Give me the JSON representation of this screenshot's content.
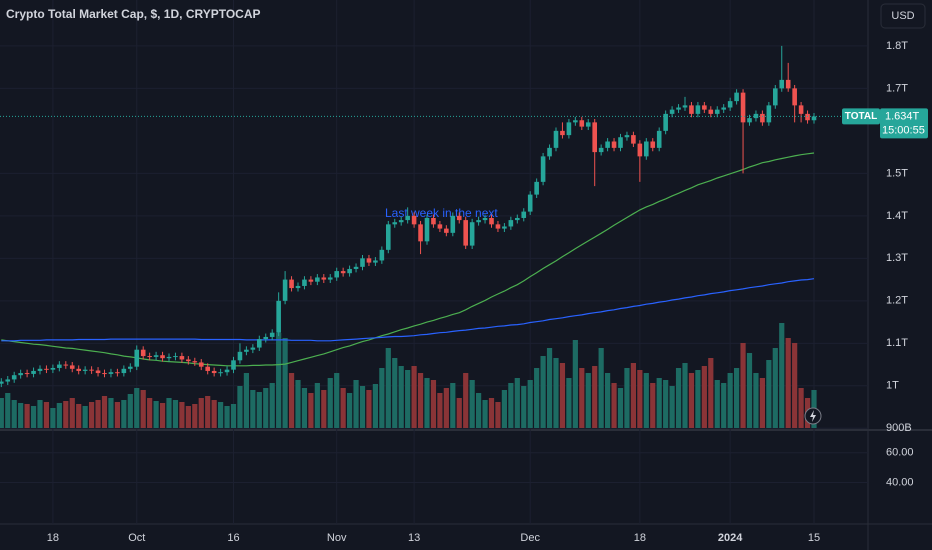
{
  "chart_data": {
    "type": "candlestick",
    "title": "Crypto Total Market Cap, $, 1D, CRYPTOCAP",
    "currency": "USD",
    "price_label": "TOTAL",
    "last_price": {
      "value": 1.634,
      "label": "1.634T"
    },
    "countdown": "15:00:55",
    "annotation": "Last week in the next",
    "up_color": "#26a69a",
    "down_color": "#ef5350",
    "grid": true,
    "categories": [
      null,
      null,
      null,
      null,
      null,
      null,
      null,
      null,
      "18",
      null,
      null,
      null,
      null,
      null,
      null,
      null,
      null,
      null,
      null,
      null,
      null,
      "Oct",
      null,
      null,
      null,
      null,
      null,
      null,
      null,
      null,
      null,
      null,
      null,
      null,
      null,
      null,
      "16",
      null,
      null,
      null,
      null,
      null,
      null,
      null,
      null,
      null,
      null,
      null,
      null,
      null,
      null,
      null,
      "Nov",
      null,
      null,
      null,
      null,
      null,
      null,
      null,
      null,
      null,
      null,
      null,
      "13",
      null,
      null,
      null,
      null,
      null,
      null,
      null,
      null,
      null,
      null,
      null,
      null,
      null,
      null,
      null,
      null,
      null,
      "Dec",
      null,
      null,
      null,
      null,
      null,
      null,
      null,
      null,
      null,
      null,
      null,
      null,
      null,
      null,
      null,
      null,
      "18",
      null,
      null,
      null,
      null,
      null,
      null,
      null,
      null,
      null,
      null,
      null,
      null,
      null,
      "2024",
      null,
      null,
      null,
      null,
      null,
      null,
      null,
      null,
      null,
      null,
      null,
      null,
      "15"
    ],
    "ohlc": [
      [
        1.005,
        1.018,
        0.997,
        1.01
      ],
      [
        1.01,
        1.023,
        1.002,
        1.015
      ],
      [
        1.015,
        1.033,
        1.007,
        1.025
      ],
      [
        1.025,
        1.038,
        1.017,
        1.03
      ],
      [
        1.03,
        1.038,
        1.02,
        1.028
      ],
      [
        1.028,
        1.043,
        1.02,
        1.035
      ],
      [
        1.035,
        1.048,
        1.027,
        1.04
      ],
      [
        1.04,
        1.048,
        1.03,
        1.038
      ],
      [
        1.038,
        1.05,
        1.03,
        1.042
      ],
      [
        1.042,
        1.058,
        1.034,
        1.05
      ],
      [
        1.05,
        1.058,
        1.04,
        1.048
      ],
      [
        1.048,
        1.056,
        1.032,
        1.04
      ],
      [
        1.04,
        1.048,
        1.027,
        1.035
      ],
      [
        1.035,
        1.046,
        1.027,
        1.038
      ],
      [
        1.038,
        1.046,
        1.028,
        1.036
      ],
      [
        1.036,
        1.044,
        1.022,
        1.03
      ],
      [
        1.03,
        1.038,
        1.02,
        1.028
      ],
      [
        1.028,
        1.04,
        1.02,
        1.032
      ],
      [
        1.032,
        1.04,
        1.022,
        1.03
      ],
      [
        1.03,
        1.048,
        1.022,
        1.04
      ],
      [
        1.04,
        1.053,
        1.032,
        1.045
      ],
      [
        1.045,
        1.095,
        1.037,
        1.085
      ],
      [
        1.085,
        1.093,
        1.062,
        1.07
      ],
      [
        1.07,
        1.078,
        1.06,
        1.068
      ],
      [
        1.068,
        1.08,
        1.06,
        1.072
      ],
      [
        1.072,
        1.08,
        1.057,
        1.065
      ],
      [
        1.065,
        1.076,
        1.057,
        1.068
      ],
      [
        1.068,
        1.078,
        1.06,
        1.07
      ],
      [
        1.07,
        1.078,
        1.054,
        1.062
      ],
      [
        1.062,
        1.07,
        1.05,
        1.058
      ],
      [
        1.058,
        1.066,
        1.047,
        1.055
      ],
      [
        1.055,
        1.063,
        1.037,
        1.045
      ],
      [
        1.045,
        1.053,
        1.027,
        1.035
      ],
      [
        1.035,
        1.043,
        1.022,
        1.03
      ],
      [
        1.03,
        1.04,
        1.022,
        1.032
      ],
      [
        1.032,
        1.046,
        1.024,
        1.038
      ],
      [
        1.038,
        1.068,
        1.03,
        1.06
      ],
      [
        1.06,
        1.1,
        1.052,
        1.08
      ],
      [
        1.08,
        1.093,
        1.072,
        1.085
      ],
      [
        1.085,
        1.098,
        1.077,
        1.09
      ],
      [
        1.09,
        1.118,
        1.082,
        1.11
      ],
      [
        1.11,
        1.123,
        1.102,
        1.115
      ],
      [
        1.115,
        1.133,
        1.107,
        1.125
      ],
      [
        1.125,
        1.22,
        1.117,
        1.2
      ],
      [
        1.2,
        1.27,
        1.192,
        1.25
      ],
      [
        1.25,
        1.258,
        1.222,
        1.23
      ],
      [
        1.23,
        1.243,
        1.222,
        1.235
      ],
      [
        1.235,
        1.258,
        1.227,
        1.25
      ],
      [
        1.25,
        1.258,
        1.237,
        1.245
      ],
      [
        1.245,
        1.263,
        1.237,
        1.255
      ],
      [
        1.255,
        1.263,
        1.242,
        1.25
      ],
      [
        1.25,
        1.263,
        1.242,
        1.255
      ],
      [
        1.255,
        1.278,
        1.247,
        1.27
      ],
      [
        1.27,
        1.278,
        1.257,
        1.265
      ],
      [
        1.265,
        1.283,
        1.257,
        1.275
      ],
      [
        1.275,
        1.288,
        1.267,
        1.28
      ],
      [
        1.28,
        1.308,
        1.272,
        1.3
      ],
      [
        1.3,
        1.308,
        1.282,
        1.29
      ],
      [
        1.29,
        1.303,
        1.282,
        1.295
      ],
      [
        1.295,
        1.328,
        1.287,
        1.32
      ],
      [
        1.32,
        1.388,
        1.312,
        1.38
      ],
      [
        1.38,
        1.393,
        1.372,
        1.385
      ],
      [
        1.385,
        1.398,
        1.377,
        1.39
      ],
      [
        1.39,
        1.42,
        1.382,
        1.4
      ],
      [
        1.4,
        1.408,
        1.372,
        1.38
      ],
      [
        1.38,
        1.388,
        1.31,
        1.34
      ],
      [
        1.34,
        1.403,
        1.332,
        1.395
      ],
      [
        1.395,
        1.403,
        1.372,
        1.38
      ],
      [
        1.38,
        1.388,
        1.362,
        1.37
      ],
      [
        1.37,
        1.378,
        1.352,
        1.36
      ],
      [
        1.36,
        1.408,
        1.352,
        1.4
      ],
      [
        1.4,
        1.408,
        1.382,
        1.39
      ],
      [
        1.39,
        1.398,
        1.322,
        1.33
      ],
      [
        1.33,
        1.393,
        1.322,
        1.385
      ],
      [
        1.385,
        1.398,
        1.377,
        1.39
      ],
      [
        1.39,
        1.403,
        1.382,
        1.395
      ],
      [
        1.395,
        1.403,
        1.372,
        1.38
      ],
      [
        1.38,
        1.388,
        1.362,
        1.37
      ],
      [
        1.37,
        1.383,
        1.362,
        1.375
      ],
      [
        1.375,
        1.398,
        1.367,
        1.39
      ],
      [
        1.39,
        1.403,
        1.382,
        1.395
      ],
      [
        1.395,
        1.418,
        1.387,
        1.41
      ],
      [
        1.41,
        1.458,
        1.402,
        1.45
      ],
      [
        1.45,
        1.488,
        1.442,
        1.48
      ],
      [
        1.48,
        1.548,
        1.472,
        1.54
      ],
      [
        1.54,
        1.568,
        1.532,
        1.56
      ],
      [
        1.56,
        1.608,
        1.552,
        1.6
      ],
      [
        1.6,
        1.62,
        1.582,
        1.59
      ],
      [
        1.59,
        1.628,
        1.582,
        1.62
      ],
      [
        1.62,
        1.633,
        1.612,
        1.625
      ],
      [
        1.625,
        1.633,
        1.602,
        1.61
      ],
      [
        1.61,
        1.628,
        1.602,
        1.62
      ],
      [
        1.62,
        1.628,
        1.47,
        1.55
      ],
      [
        1.55,
        1.568,
        1.542,
        1.56
      ],
      [
        1.56,
        1.583,
        1.552,
        1.575
      ],
      [
        1.575,
        1.583,
        1.552,
        1.56
      ],
      [
        1.56,
        1.593,
        1.552,
        1.585
      ],
      [
        1.585,
        1.598,
        1.577,
        1.59
      ],
      [
        1.59,
        1.598,
        1.562,
        1.57
      ],
      [
        1.57,
        1.578,
        1.48,
        1.54
      ],
      [
        1.54,
        1.583,
        1.532,
        1.575
      ],
      [
        1.575,
        1.583,
        1.552,
        1.56
      ],
      [
        1.56,
        1.608,
        1.552,
        1.6
      ],
      [
        1.6,
        1.648,
        1.592,
        1.64
      ],
      [
        1.64,
        1.658,
        1.632,
        1.65
      ],
      [
        1.65,
        1.663,
        1.642,
        1.655
      ],
      [
        1.655,
        1.68,
        1.647,
        1.66
      ],
      [
        1.66,
        1.668,
        1.632,
        1.64
      ],
      [
        1.64,
        1.668,
        1.632,
        1.66
      ],
      [
        1.66,
        1.668,
        1.642,
        1.65
      ],
      [
        1.65,
        1.658,
        1.632,
        1.64
      ],
      [
        1.64,
        1.658,
        1.632,
        1.65
      ],
      [
        1.65,
        1.663,
        1.642,
        1.655
      ],
      [
        1.655,
        1.678,
        1.647,
        1.67
      ],
      [
        1.67,
        1.698,
        1.662,
        1.69
      ],
      [
        1.69,
        1.698,
        1.5,
        1.62
      ],
      [
        1.62,
        1.638,
        1.612,
        1.63
      ],
      [
        1.63,
        1.648,
        1.622,
        1.64
      ],
      [
        1.64,
        1.648,
        1.612,
        1.62
      ],
      [
        1.62,
        1.668,
        1.612,
        1.66
      ],
      [
        1.66,
        1.708,
        1.652,
        1.7
      ],
      [
        1.7,
        1.8,
        1.692,
        1.72
      ],
      [
        1.72,
        1.76,
        1.692,
        1.7
      ],
      [
        1.7,
        1.708,
        1.62,
        1.66
      ],
      [
        1.66,
        1.668,
        1.62,
        1.64
      ],
      [
        1.64,
        1.648,
        1.617,
        1.625
      ],
      [
        1.625,
        1.642,
        1.617,
        1.634
      ]
    ],
    "volume": {
      "up_color": "#1d6b63",
      "down_color": "#8a3437",
      "values": [
        30,
        35,
        28,
        25,
        24,
        22,
        28,
        26,
        20,
        25,
        27,
        30,
        24,
        22,
        26,
        28,
        32,
        30,
        26,
        28,
        34,
        40,
        38,
        30,
        27,
        25,
        30,
        28,
        26,
        22,
        24,
        30,
        32,
        28,
        26,
        22,
        24,
        42,
        55,
        38,
        36,
        40,
        45,
        95,
        90,
        55,
        48,
        40,
        35,
        45,
        38,
        50,
        55,
        40,
        35,
        48,
        42,
        38,
        44,
        60,
        80,
        70,
        62,
        58,
        62,
        55,
        50,
        48,
        35,
        40,
        45,
        30,
        55,
        48,
        35,
        28,
        30,
        26,
        38,
        45,
        50,
        42,
        48,
        60,
        72,
        80,
        70,
        65,
        50,
        88,
        60,
        55,
        62,
        80,
        55,
        45,
        40,
        60,
        65,
        58,
        55,
        45,
        50,
        48,
        42,
        60,
        65,
        55,
        58,
        62,
        70,
        48,
        45,
        55,
        60,
        85,
        75,
        55,
        50,
        68,
        80,
        105,
        90,
        85,
        40,
        30,
        38
      ]
    },
    "lines": [
      {
        "color": "#4caf50",
        "values": [
          1.108,
          1.106,
          1.104,
          1.102,
          1.1,
          1.098,
          1.097,
          1.095,
          1.093,
          1.091,
          1.089,
          1.088,
          1.086,
          1.084,
          1.082,
          1.08,
          1.078,
          1.075,
          1.073,
          1.07,
          1.068,
          1.066,
          1.063,
          1.061,
          1.06,
          1.058,
          1.057,
          1.056,
          1.055,
          1.054,
          1.052,
          1.051,
          1.05,
          1.049,
          1.048,
          1.047,
          1.047,
          1.047,
          1.047,
          1.048,
          1.048,
          1.049,
          1.049,
          1.05,
          1.051,
          1.055,
          1.059,
          1.063,
          1.067,
          1.071,
          1.075,
          1.08,
          1.085,
          1.09,
          1.094,
          1.099,
          1.104,
          1.108,
          1.113,
          1.118,
          1.122,
          1.127,
          1.132,
          1.136,
          1.141,
          1.145,
          1.15,
          1.154,
          1.159,
          1.163,
          1.168,
          1.172,
          1.179,
          1.187,
          1.194,
          1.201,
          1.209,
          1.216,
          1.223,
          1.231,
          1.238,
          1.247,
          1.257,
          1.266,
          1.276,
          1.285,
          1.294,
          1.304,
          1.313,
          1.323,
          1.332,
          1.341,
          1.35,
          1.359,
          1.368,
          1.378,
          1.387,
          1.396,
          1.405,
          1.414,
          1.421,
          1.427,
          1.434,
          1.44,
          1.447,
          1.453,
          1.46,
          1.466,
          1.473,
          1.478,
          1.483,
          1.489,
          1.494,
          1.499,
          1.504,
          1.509,
          1.515,
          1.52,
          1.525,
          1.528,
          1.532,
          1.535,
          1.538,
          1.541,
          1.544,
          1.546,
          1.548
        ]
      },
      {
        "color": "#2962ff",
        "values": [
          1.106,
          1.106,
          1.106,
          1.107,
          1.107,
          1.107,
          1.107,
          1.108,
          1.108,
          1.108,
          1.108,
          1.108,
          1.109,
          1.109,
          1.109,
          1.109,
          1.109,
          1.11,
          1.11,
          1.11,
          1.11,
          1.11,
          1.11,
          1.11,
          1.11,
          1.11,
          1.11,
          1.11,
          1.11,
          1.11,
          1.11,
          1.109,
          1.109,
          1.109,
          1.109,
          1.109,
          1.109,
          1.109,
          1.108,
          1.108,
          1.108,
          1.108,
          1.108,
          1.108,
          1.108,
          1.107,
          1.107,
          1.107,
          1.107,
          1.106,
          1.106,
          1.106,
          1.107,
          1.108,
          1.109,
          1.11,
          1.111,
          1.112,
          1.113,
          1.114,
          1.115,
          1.116,
          1.116,
          1.117,
          1.118,
          1.12,
          1.121,
          1.123,
          1.125,
          1.126,
          1.128,
          1.13,
          1.131,
          1.133,
          1.135,
          1.136,
          1.138,
          1.14,
          1.141,
          1.143,
          1.144,
          1.146,
          1.149,
          1.151,
          1.153,
          1.156,
          1.158,
          1.16,
          1.163,
          1.165,
          1.167,
          1.17,
          1.172,
          1.174,
          1.177,
          1.179,
          1.182,
          1.184,
          1.187,
          1.189,
          1.192,
          1.194,
          1.197,
          1.199,
          1.202,
          1.204,
          1.207,
          1.209,
          1.212,
          1.214,
          1.217,
          1.219,
          1.221,
          1.224,
          1.226,
          1.228,
          1.231,
          1.233,
          1.235,
          1.238,
          1.24,
          1.242,
          1.245,
          1.247,
          1.249,
          1.25,
          1.252
        ]
      }
    ],
    "ylim": [
      0.896,
      1.908
    ],
    "yticks": [
      {
        "value": 0.9,
        "label": "900B"
      },
      {
        "value": 1,
        "label": "1T"
      },
      {
        "value": 1.1,
        "label": "1.1T"
      },
      {
        "value": 1.2,
        "label": "1.2T"
      },
      {
        "value": 1.3,
        "label": "1.3T"
      },
      {
        "value": 1.4,
        "label": "1.4T"
      },
      {
        "value": 1.5,
        "label": "1.5T"
      },
      {
        "value": 1.7,
        "label": "1.7T"
      },
      {
        "value": 1.8,
        "label": "1.8T"
      }
    ],
    "lower_ylim": [
      12.1,
      75.3
    ],
    "lower_yticks": [
      {
        "value": 40,
        "label": "40.00"
      },
      {
        "value": 60,
        "label": "60.00"
      }
    ]
  }
}
